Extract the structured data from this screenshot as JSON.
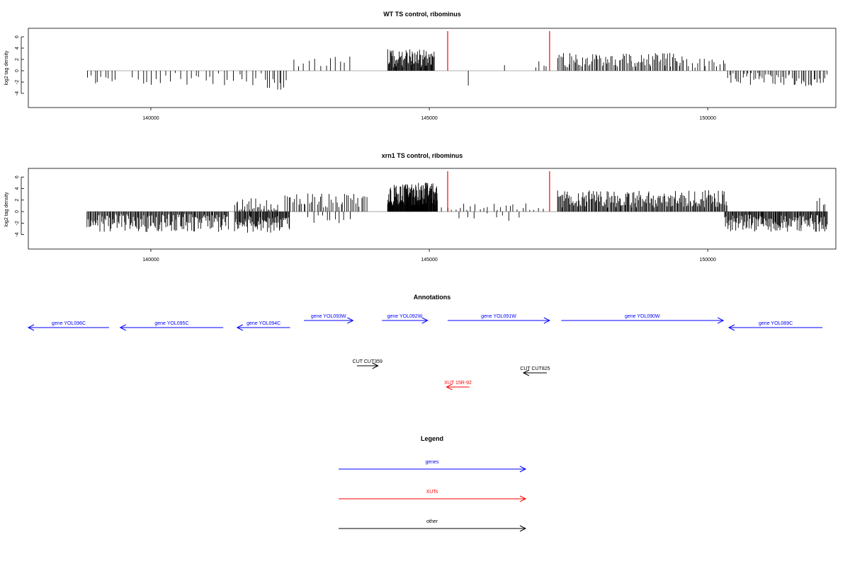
{
  "chart_data": [
    {
      "type": "bar",
      "title": "WT TS control, ribominus",
      "xlabel": "",
      "ylabel": "log2 tag density",
      "xlim": [
        137800,
        152300
      ],
      "ylim": [
        -6.5,
        7.5
      ],
      "xticks": [
        140000,
        145000,
        150000
      ],
      "yticks": [
        6,
        4,
        2,
        0,
        -2,
        -4
      ],
      "grid": false,
      "markers": {
        "color": "#ff0000",
        "positions": [
          145330,
          147160
        ],
        "value": 7.0
      },
      "segments": [
        {
          "x0": 138850,
          "x1": 139400,
          "count": 9,
          "sign": -1,
          "mean": 1.6,
          "amp": 0.9,
          "seed": 11
        },
        {
          "x0": 139650,
          "x1": 142050,
          "count": 28,
          "sign": -1,
          "mean": 1.5,
          "amp": 1.2,
          "seed": 23
        },
        {
          "x0": 142050,
          "x1": 142450,
          "count": 10,
          "sign": -1,
          "mean": 2.4,
          "amp": 1.0,
          "seed": 31
        },
        {
          "x0": 142550,
          "x1": 143650,
          "count": 12,
          "sign": 1,
          "mean": 1.7,
          "amp": 1.0,
          "seed": 37
        },
        {
          "x0": 144250,
          "x1": 145100,
          "count": 75,
          "sign": 1,
          "mean": 2.2,
          "amp": 1.6,
          "seed": 41
        },
        {
          "x0": 145700,
          "x1": 145750,
          "count": 1,
          "sign": -1,
          "mean": 2.6,
          "amp": 0.0,
          "seed": 43
        },
        {
          "x0": 146350,
          "x1": 146400,
          "count": 1,
          "sign": 1,
          "mean": 1.0,
          "amp": 0.0,
          "seed": 47
        },
        {
          "x0": 146900,
          "x1": 147150,
          "count": 4,
          "sign": 1,
          "mean": 1.4,
          "amp": 1.0,
          "seed": 53
        },
        {
          "x0": 147300,
          "x1": 149550,
          "count": 90,
          "sign": 1,
          "mean": 1.9,
          "amp": 1.3,
          "seed": 59
        },
        {
          "x0": 149550,
          "x1": 150350,
          "count": 16,
          "sign": 1,
          "mean": 1.3,
          "amp": 0.9,
          "seed": 61
        },
        {
          "x0": 150350,
          "x1": 152150,
          "count": 55,
          "sign": -1,
          "mean": 1.6,
          "amp": 1.2,
          "seed": 67
        }
      ]
    },
    {
      "type": "bar",
      "title": "xrn1 TS control, ribominus",
      "xlabel": "",
      "ylabel": "log2 tag density",
      "xlim": [
        137800,
        152300
      ],
      "ylim": [
        -6.5,
        7.5
      ],
      "xticks": [
        140000,
        145000,
        150000
      ],
      "yticks": [
        6,
        4,
        2,
        0,
        -2,
        -4
      ],
      "grid": false,
      "markers": {
        "color": "#ff0000",
        "positions": [
          145330,
          147160
        ],
        "value": 7.0
      },
      "segments": [
        {
          "x0": 138850,
          "x1": 141400,
          "count": 160,
          "sign": -1,
          "mean": 2.0,
          "amp": 1.6,
          "seed": 71
        },
        {
          "x0": 141500,
          "x1": 142500,
          "count": 75,
          "sign": -1,
          "mean": 2.2,
          "amp": 1.5,
          "seed": 73
        },
        {
          "x0": 141500,
          "x1": 142300,
          "count": 30,
          "sign": 1,
          "mean": 1.3,
          "amp": 1.2,
          "seed": 79
        },
        {
          "x0": 142400,
          "x1": 143900,
          "count": 45,
          "sign": 1,
          "mean": 2.0,
          "amp": 1.3,
          "seed": 83
        },
        {
          "x0": 142800,
          "x1": 143600,
          "count": 10,
          "sign": -1,
          "mean": 1.2,
          "amp": 0.8,
          "seed": 89
        },
        {
          "x0": 144250,
          "x1": 145150,
          "count": 140,
          "sign": 1,
          "mean": 3.0,
          "amp": 2.0,
          "seed": 97
        },
        {
          "x0": 145200,
          "x1": 147100,
          "count": 25,
          "sign": 1,
          "mean": 0.8,
          "amp": 0.7,
          "seed": 101
        },
        {
          "x0": 145500,
          "x1": 146700,
          "count": 8,
          "sign": -1,
          "mean": 1.0,
          "amp": 0.7,
          "seed": 103
        },
        {
          "x0": 147300,
          "x1": 150350,
          "count": 190,
          "sign": 1,
          "mean": 2.2,
          "amp": 1.5,
          "seed": 107
        },
        {
          "x0": 150300,
          "x1": 152150,
          "count": 140,
          "sign": -1,
          "mean": 2.0,
          "amp": 1.5,
          "seed": 109
        },
        {
          "x0": 151950,
          "x1": 152150,
          "count": 4,
          "sign": 1,
          "mean": 1.8,
          "amp": 0.8,
          "seed": 113
        }
      ]
    },
    {
      "type": "annotation",
      "title": "Annotations",
      "genes_color": "#0000ff",
      "features": [
        {
          "label": "gene YOL096C",
          "kind": "gene",
          "strand": "-",
          "x0": 137800,
          "x1": 139250,
          "row": 1
        },
        {
          "label": "gene YOL095C",
          "kind": "gene",
          "strand": "-",
          "x0": 139450,
          "x1": 141300,
          "row": 1
        },
        {
          "label": "gene YOL094C",
          "kind": "gene",
          "strand": "-",
          "x0": 141550,
          "x1": 142500,
          "row": 1
        },
        {
          "label": "gene YOL093W",
          "kind": "gene",
          "strand": "+",
          "x0": 142750,
          "x1": 143630,
          "row": 0
        },
        {
          "label": "gene YOL092W",
          "kind": "gene",
          "strand": "+",
          "x0": 144150,
          "x1": 144970,
          "row": 0
        },
        {
          "label": "gene YOL091W",
          "kind": "gene",
          "strand": "+",
          "x0": 145330,
          "x1": 147160,
          "row": 0
        },
        {
          "label": "gene YOL090W",
          "kind": "gene",
          "strand": "+",
          "x0": 147370,
          "x1": 150280,
          "row": 0
        },
        {
          "label": "gene YOL089C",
          "kind": "gene",
          "strand": "-",
          "x0": 150380,
          "x1": 152060,
          "row": 1
        },
        {
          "label": "CUT CUT359",
          "kind": "other",
          "strand": "+",
          "x0": 143700,
          "x1": 144080,
          "row": 2
        },
        {
          "label": "CUT CUT825",
          "kind": "other",
          "strand": "-",
          "x0": 146690,
          "x1": 147110,
          "row": 3
        },
        {
          "label": "XUT 15R-92",
          "kind": "xut",
          "strand": "-",
          "x0": 145310,
          "x1": 145720,
          "row": 4
        }
      ]
    },
    {
      "type": "legend",
      "title": "Legend",
      "entries": [
        {
          "label": "genes",
          "color": "#0000ff"
        },
        {
          "label": "XUTs",
          "color": "#ff0000"
        },
        {
          "label": "other",
          "color": "#000000"
        }
      ]
    }
  ]
}
